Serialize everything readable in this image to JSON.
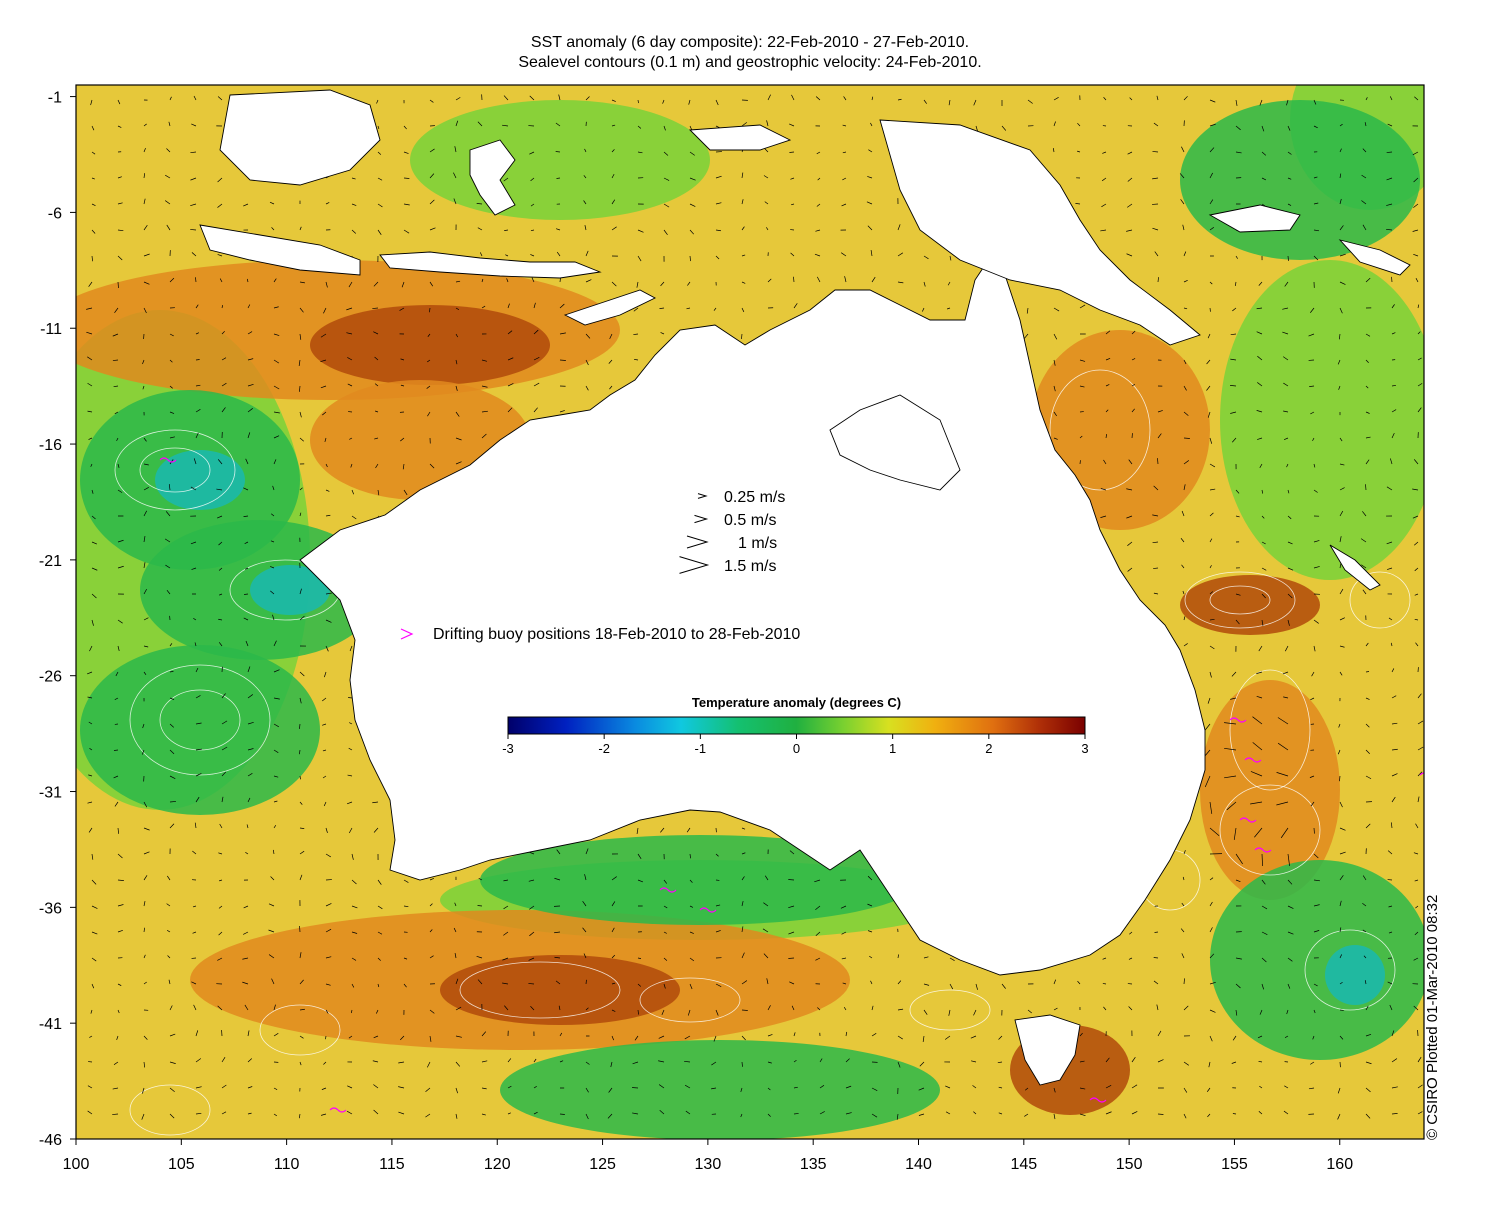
{
  "title_line1": "SST anomaly (6 day composite): 22-Feb-2010 - 27-Feb-2010.",
  "title_line2": "Sealevel contours (0.1 m) and geostrophic velocity: 24-Feb-2010.",
  "credit": "© CSIRO Plotted 01-Mar-2010 08:32",
  "axes": {
    "x_ticks": [
      "100",
      "105",
      "110",
      "115",
      "120",
      "125",
      "130",
      "135",
      "140",
      "145",
      "150",
      "155",
      "160"
    ],
    "y_ticks": [
      "-1",
      "-6",
      "-11",
      "-16",
      "-21",
      "-26",
      "-31",
      "-36",
      "-41",
      "-46"
    ],
    "lon_range": [
      100,
      164
    ],
    "lat_range": [
      -46,
      -0.5
    ]
  },
  "velocity_legend": [
    {
      "label": "0.25 m/s",
      "speed": 0.25
    },
    {
      "label": "0.5 m/s",
      "speed": 0.5
    },
    {
      "label": "1 m/s",
      "speed": 1
    },
    {
      "label": "1.5 m/s",
      "speed": 1.5
    }
  ],
  "buoy_legend": {
    "label": "Drifting buoy positions 18-Feb-2010 to 28-Feb-2010",
    "color": "#ff00ff"
  },
  "colorbar": {
    "title": "Temperature anomaly (degrees C)",
    "ticks": [
      "-3",
      "-2",
      "-1",
      "0",
      "1",
      "2",
      "3"
    ],
    "range": [
      -3,
      3
    ]
  },
  "colors": {
    "ocean_warm": "#e08a1e",
    "ocean_hot": "#b04a0a",
    "ocean_mild": "#e6c83a",
    "ocean_neutral": "#7ed23a",
    "ocean_cool": "#2cb84a",
    "ocean_cold": "#1ab8b0",
    "land": "#ffffff",
    "coast": "#000000",
    "contour": "#ffffff"
  }
}
